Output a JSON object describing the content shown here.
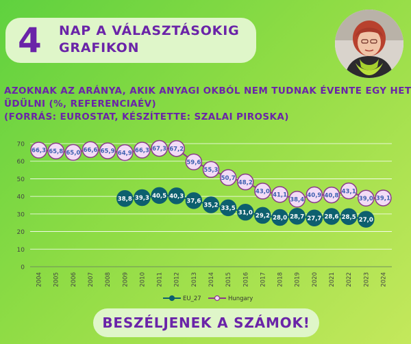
{
  "header": {
    "number": "4",
    "line1": "NAP A VÁLASZTÁSOKIG",
    "line2": "GRAFIKON"
  },
  "subtitle": {
    "line1": "AZOKNAK AZ ARÁNYA, AKIK ANYAGI OKBÓL NEM TUDNAK ÉVENTE EGY HETET",
    "line2": "ÜDÜLNI (%, REFERENCIAÉV)",
    "line3": "(FORRÁS: EUROSTAT, KÉSZÍTETTE: SZALAI PIROSKA)"
  },
  "footer": {
    "label": "BESZÉLJENEK A SZÁMOK!"
  },
  "colors": {
    "eu": "#0d5f6e",
    "hungary_fill": "#f3dcf6",
    "hungary_line": "#8a3a8a",
    "accent": "#6a24a8"
  },
  "avatar_icon": "portrait-photo-icon",
  "chart_data": {
    "type": "line",
    "x": [
      "2004",
      "2005",
      "2006",
      "2007",
      "2008",
      "2009",
      "2010",
      "2011",
      "2012",
      "2013",
      "2014",
      "2015",
      "2016",
      "2017",
      "2018",
      "2019",
      "2020",
      "2021",
      "2022",
      "2023",
      "2024"
    ],
    "ylim": [
      0,
      70
    ],
    "yticks": [
      0,
      10,
      20,
      30,
      40,
      50,
      60,
      70
    ],
    "grid": true,
    "legend_position": "bottom",
    "series": [
      {
        "name": "EU_27",
        "values": [
          null,
          null,
          null,
          null,
          null,
          38.8,
          39.3,
          40.5,
          40.3,
          37.6,
          35.2,
          33.5,
          31.0,
          29.2,
          28.0,
          28.7,
          27.7,
          28.6,
          28.5,
          27.0,
          null
        ],
        "labels": [
          "",
          "",
          "",
          "",
          "",
          "38,8",
          "39,3",
          "40,5",
          "40,3",
          "37,6",
          "35,2",
          "33,5",
          "31,0",
          "29,2",
          "28,0",
          "28,7",
          "27,7",
          "28,6",
          "28,5",
          "27,0",
          ""
        ]
      },
      {
        "name": "Hungary",
        "values": [
          66.3,
          65.8,
          65.0,
          66.6,
          65.9,
          64.9,
          66.3,
          67.3,
          67.2,
          59.6,
          55.3,
          50.7,
          48.2,
          43.0,
          41.1,
          38.4,
          40.9,
          40.8,
          43.1,
          39.0,
          39.1
        ],
        "labels": [
          "66,3",
          "65,8",
          "65,0",
          "66,6",
          "65,9",
          "64,9",
          "66,3",
          "67,3",
          "67,2",
          "59,6",
          "55,3",
          "50,7",
          "48,2",
          "43,0",
          "41,1",
          "38,4",
          "40,9",
          "40,8",
          "43,1",
          "39,0",
          "39,1"
        ]
      }
    ]
  }
}
